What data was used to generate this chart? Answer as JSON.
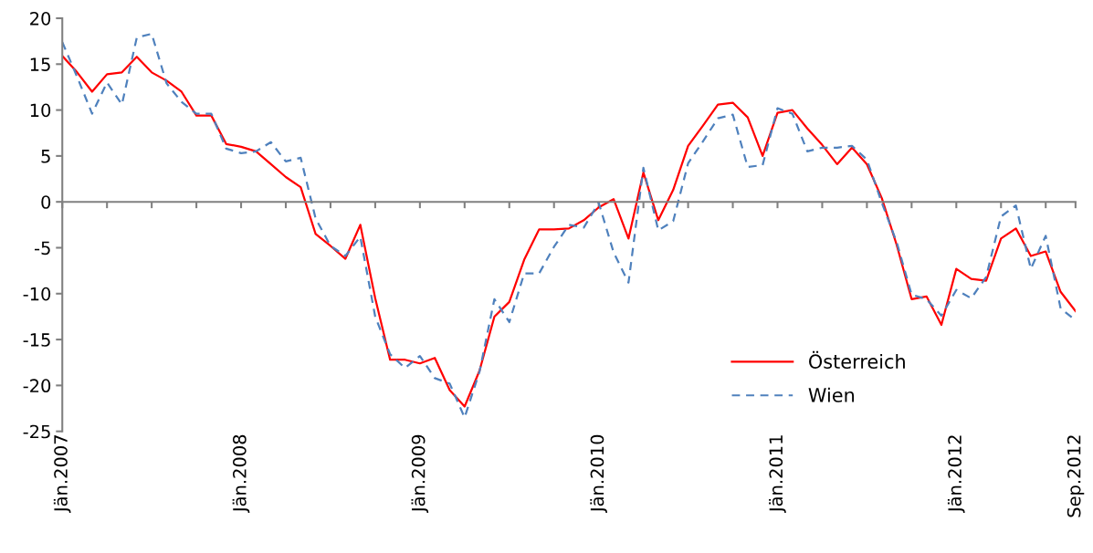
{
  "chart_data": {
    "type": "line",
    "x": [
      "2007-01",
      "2007-02",
      "2007-03",
      "2007-04",
      "2007-05",
      "2007-06",
      "2007-07",
      "2007-08",
      "2007-09",
      "2007-10",
      "2007-11",
      "2007-12",
      "2008-01",
      "2008-02",
      "2008-03",
      "2008-04",
      "2008-05",
      "2008-06",
      "2008-07",
      "2008-08",
      "2008-09",
      "2008-10",
      "2008-11",
      "2008-12",
      "2009-01",
      "2009-02",
      "2009-03",
      "2009-04",
      "2009-05",
      "2009-06",
      "2009-07",
      "2009-08",
      "2009-09",
      "2009-10",
      "2009-11",
      "2009-12",
      "2010-01",
      "2010-02",
      "2010-03",
      "2010-04",
      "2010-05",
      "2010-06",
      "2010-07",
      "2010-08",
      "2010-09",
      "2010-10",
      "2010-11",
      "2010-12",
      "2011-01",
      "2011-02",
      "2011-03",
      "2011-04",
      "2011-05",
      "2011-06",
      "2011-07",
      "2011-08",
      "2011-09",
      "2011-10",
      "2011-11",
      "2011-12",
      "2012-01",
      "2012-02",
      "2012-03",
      "2012-04",
      "2012-05",
      "2012-06",
      "2012-07",
      "2012-08",
      "2012-09"
    ],
    "series": [
      {
        "name": "Österreich",
        "color": "#ff0000",
        "line_style": "solid",
        "values": [
          15.9,
          14.1,
          12.0,
          13.9,
          14.1,
          15.8,
          14.1,
          13.2,
          12.0,
          9.4,
          9.4,
          6.3,
          6.0,
          5.5,
          4.1,
          2.7,
          1.6,
          -3.5,
          -4.8,
          -6.2,
          -2.5,
          -10.5,
          -17.2,
          -17.2,
          -17.6,
          -17.0,
          -20.5,
          -22.3,
          -18.4,
          -12.5,
          -10.9,
          -6.3,
          -3.0,
          -3.0,
          -2.9,
          -2.0,
          -0.6,
          0.3,
          -4.0,
          3.2,
          -2.0,
          1.3,
          6.1,
          8.3,
          10.6,
          10.8,
          9.2,
          5.0,
          9.7,
          10.0,
          8.0,
          6.2,
          4.1,
          5.9,
          4.1,
          0.4,
          -4.7,
          -10.6,
          -10.3,
          -13.4,
          -7.3,
          -8.4,
          -8.6,
          -4.0,
          -2.9,
          -5.9,
          -5.4,
          -9.8,
          -11.9
        ]
      },
      {
        "name": "Wien",
        "color": "#4f81bd",
        "line_style": "dashed",
        "values": [
          17.4,
          13.6,
          9.6,
          13.0,
          10.6,
          17.9,
          18.3,
          12.9,
          10.9,
          9.6,
          9.6,
          5.8,
          5.3,
          5.5,
          6.5,
          4.4,
          4.8,
          -1.8,
          -4.8,
          -5.9,
          -3.8,
          -12.5,
          -16.6,
          -18.1,
          -16.8,
          -19.2,
          -19.8,
          -23.5,
          -18.5,
          -10.6,
          -13.1,
          -7.8,
          -7.8,
          -4.9,
          -2.5,
          -2.8,
          -0.1,
          -5.5,
          -8.8,
          3.7,
          -3.1,
          -2.1,
          4.2,
          6.6,
          9.1,
          9.5,
          3.8,
          4.0,
          10.2,
          9.6,
          5.5,
          5.9,
          5.9,
          6.1,
          4.6,
          -0.1,
          -4.4,
          -10.1,
          -10.6,
          -12.4,
          -9.6,
          -10.5,
          -8.2,
          -1.6,
          -0.4,
          -7.3,
          -3.7,
          -11.6,
          -12.9
        ]
      }
    ],
    "xlim": [
      "2007-01",
      "2012-09"
    ],
    "xticks": [
      {
        "value": "2007-01",
        "label": "Jän.2007"
      },
      {
        "value": "2007-04",
        "label": null
      },
      {
        "value": "2007-07",
        "label": null
      },
      {
        "value": "2007-10",
        "label": null
      },
      {
        "value": "2008-01",
        "label": "Jän.2008"
      },
      {
        "value": "2008-04",
        "label": null
      },
      {
        "value": "2008-07",
        "label": null
      },
      {
        "value": "2008-10",
        "label": null
      },
      {
        "value": "2009-01",
        "label": "Jän.2009"
      },
      {
        "value": "2009-04",
        "label": null
      },
      {
        "value": "2009-07",
        "label": null
      },
      {
        "value": "2009-10",
        "label": null
      },
      {
        "value": "2010-01",
        "label": "Jän.2010"
      },
      {
        "value": "2010-04",
        "label": null
      },
      {
        "value": "2010-07",
        "label": null
      },
      {
        "value": "2010-10",
        "label": null
      },
      {
        "value": "2011-01",
        "label": "Jän.2011"
      },
      {
        "value": "2011-04",
        "label": null
      },
      {
        "value": "2011-07",
        "label": null
      },
      {
        "value": "2011-10",
        "label": null
      },
      {
        "value": "2012-01",
        "label": "Jän.2012"
      },
      {
        "value": "2012-04",
        "label": null
      },
      {
        "value": "2012-07",
        "label": null
      },
      {
        "value": "2012-09",
        "label": "Sep.2012"
      }
    ],
    "ylim": [
      -25,
      20
    ],
    "yticks": [
      -25,
      -20,
      -15,
      -10,
      -5,
      0,
      5,
      10,
      15,
      20
    ],
    "legend": "bottom right",
    "marker": "none"
  }
}
